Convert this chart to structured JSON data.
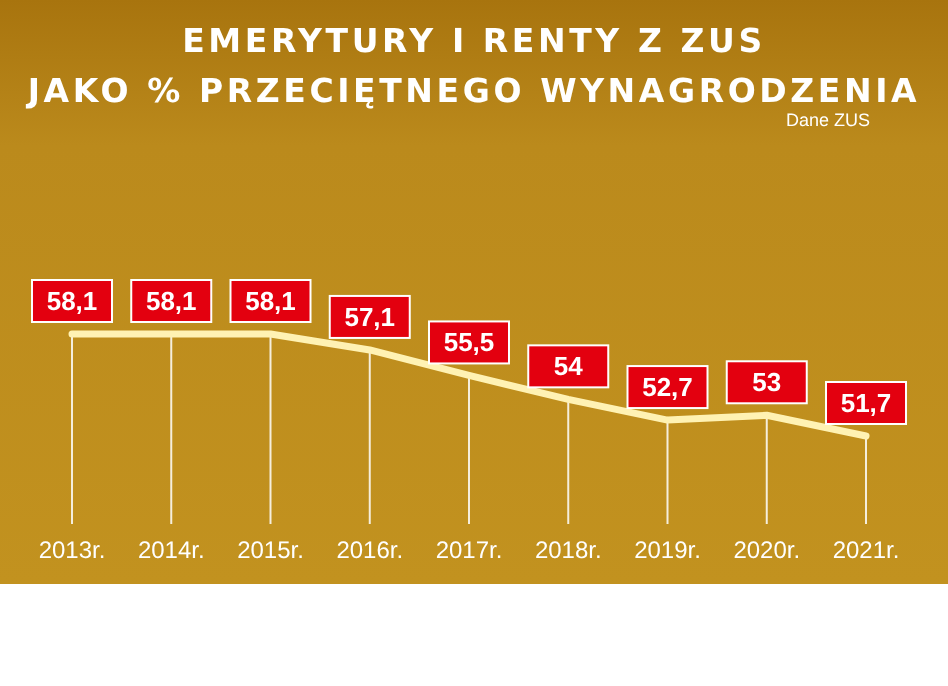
{
  "chart_data": {
    "type": "line",
    "title": "EMERYTURY I RENTY Z ZUS\nJAKO % PRZECIĘTNEGO WYNAGRODZENIA",
    "annotations": [
      "Dane ZUS"
    ],
    "categories": [
      "2013r.",
      "2014r.",
      "2015r.",
      "2016r.",
      "2017r.",
      "2018r.",
      "2019r.",
      "2020r.",
      "2021r."
    ],
    "series": [
      {
        "color": "#fff2b3",
        "values": [
          58.1,
          58.1,
          58.1,
          57.1,
          55.5,
          54,
          52.7,
          53,
          51.7
        ],
        "value_labels": [
          "58,1",
          "58,1",
          "58,1",
          "57,1",
          "55,5",
          "54",
          "52,7",
          "53",
          "51,7"
        ]
      }
    ],
    "grid": "x",
    "line_style": "solid"
  }
}
